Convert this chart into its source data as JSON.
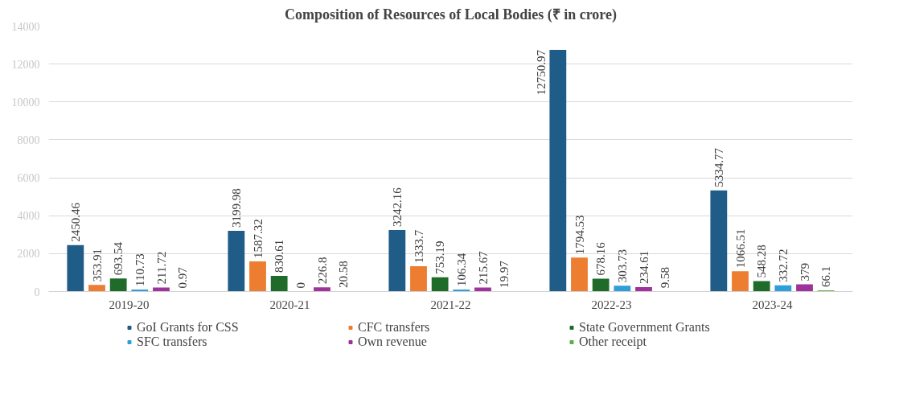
{
  "chart_data": {
    "type": "bar",
    "title": "Composition of Resources of Local Bodies (₹ in crore)",
    "categories": [
      "2019-20",
      "2020-21",
      "2021-22",
      "2022-23",
      "2023-24"
    ],
    "series": [
      {
        "name": "GoI Grants for CSS",
        "color": "#1f5c87",
        "values": [
          2450.46,
          3199.98,
          3242.16,
          12750.97,
          5334.77
        ]
      },
      {
        "name": "CFC transfers",
        "color": "#ed7d31",
        "values": [
          353.91,
          1587.32,
          1333.7,
          1794.53,
          1066.51
        ]
      },
      {
        "name": "State Government Grants",
        "color": "#1e6b2a",
        "values": [
          693.54,
          830.61,
          753.19,
          678.16,
          548.28
        ]
      },
      {
        "name": "SFC transfers",
        "color": "#2e9fd8",
        "values": [
          110.73,
          0,
          106.34,
          303.73,
          332.72
        ]
      },
      {
        "name": "Own revenue",
        "color": "#a0339b",
        "values": [
          211.72,
          226.8,
          215.67,
          234.61,
          379
        ]
      },
      {
        "name": "Other receipt",
        "color": "#5bb046",
        "values": [
          0.97,
          20.58,
          19.97,
          9.58,
          66.1
        ]
      }
    ],
    "ylim": [
      0,
      14000
    ],
    "yticks": [
      0,
      2000,
      4000,
      6000,
      8000,
      10000,
      12000,
      14000
    ],
    "grid": "y",
    "legend": "bottom",
    "data_labels": true
  }
}
